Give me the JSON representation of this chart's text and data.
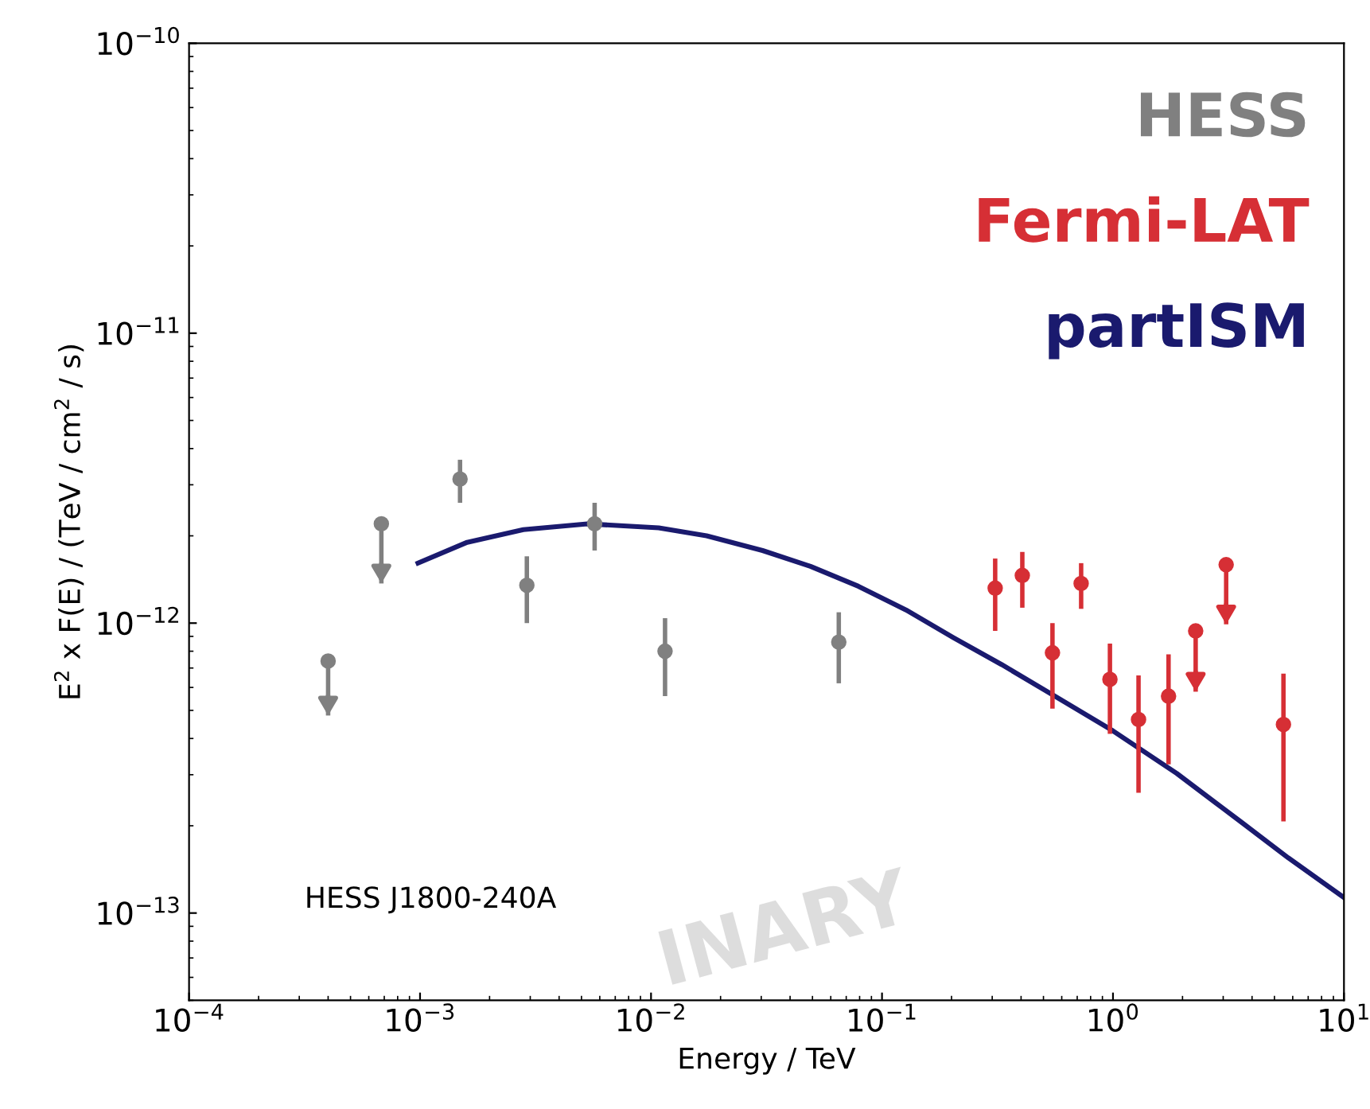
{
  "chart_data": {
    "type": "scatter",
    "xlabel": "Energy / TeV",
    "ylabel": "E$^{2}$ x F(E) / (TeV / cm$^{2}$ / s)",
    "log": "xy",
    "xlim": [
      0.0001,
      10
    ],
    "ylim": [
      5e-14,
      1e-10
    ],
    "xticks": [
      {
        "value": 0.0001,
        "label": "10$^{−4}$"
      },
      {
        "value": 0.001,
        "label": "10$^{−3}$"
      },
      {
        "value": 0.01,
        "label": "10$^{−2}$"
      },
      {
        "value": 0.1,
        "label": "10$^{−1}$"
      },
      {
        "value": 1,
        "label": "10$^{0}$"
      },
      {
        "value": 10,
        "label": "10$^{1}$"
      }
    ],
    "yticks": [
      {
        "value": 1e-13,
        "label": "10$^{−13}$"
      },
      {
        "value": 1e-12,
        "label": "10$^{−12}$"
      },
      {
        "value": 1e-11,
        "label": "10$^{−11}$"
      },
      {
        "value": 1e-10,
        "label": "10$^{−10}$"
      }
    ],
    "legend": "top right",
    "marker": "circle",
    "series": [
      {
        "name": "HESS",
        "color": "#808080",
        "x": [
          0.0004,
          0.00068,
          0.00149,
          0.0029,
          0.0057,
          0.0115,
          0.065
        ],
        "values": [
          7.4e-13,
          2.2e-12,
          3.14e-12,
          1.35e-12,
          2.2e-12,
          8e-13,
          8.6e-13
        ],
        "errors": [
          [
            4.8e-13,
            7.4e-13
          ],
          [
            1.37e-12,
            2.2e-12
          ],
          [
            2.6e-12,
            3.66e-12
          ],
          [
            1e-12,
            1.7e-12
          ],
          [
            1.78e-12,
            2.6e-12
          ],
          [
            5.6e-13,
            1.04e-12
          ],
          [
            6.2e-13,
            1.09e-12
          ]
        ]
      },
      {
        "name": "Fermi-LAT",
        "color": "#d62f35",
        "x": [
          0.309,
          0.405,
          0.547,
          0.728,
          0.97,
          1.29,
          1.74,
          2.28,
          3.09,
          5.47
        ],
        "values": [
          1.32e-12,
          1.46e-12,
          7.9e-13,
          1.37e-12,
          6.4e-13,
          4.65e-13,
          5.6e-13,
          9.4e-13,
          1.59e-12,
          4.47e-13
        ],
        "errors": [
          [
            9.4e-13,
            1.67e-12
          ],
          [
            1.13e-12,
            1.76e-12
          ],
          [
            5.07e-13,
            1e-12
          ],
          [
            1.12e-12,
            1.61e-12
          ],
          [
            4.15e-13,
            8.5e-13
          ],
          [
            2.6e-13,
            6.6e-13
          ],
          [
            3.26e-13,
            7.8e-13
          ],
          [
            5.8e-13,
            9.4e-13
          ],
          [
            9.9e-13,
            1.59e-12
          ],
          [
            2.07e-13,
            6.7e-13
          ]
        ]
      },
      {
        "name": "partISM",
        "type": "line",
        "marker": "none",
        "color": "#1a1a6e",
        "x": [
          0.00098,
          0.0016,
          0.0028,
          0.0053,
          0.0108,
          0.0174,
          0.0304,
          0.049,
          0.079,
          0.127,
          0.204,
          0.329,
          0.53,
          1.0,
          1.89,
          3.56,
          5.74,
          10
        ],
        "values": [
          1.61e-12,
          1.9e-12,
          2.1e-12,
          2.2e-12,
          2.13e-12,
          2e-12,
          1.78e-12,
          1.57e-12,
          1.34e-12,
          1.11e-12,
          8.9e-13,
          7.2e-13,
          5.75e-13,
          4.25e-13,
          3.03e-13,
          2.07e-13,
          1.55e-13,
          1.13e-13
        ]
      }
    ],
    "annotations": [
      "HESS J1800-240A",
      "INARY"
    ]
  }
}
